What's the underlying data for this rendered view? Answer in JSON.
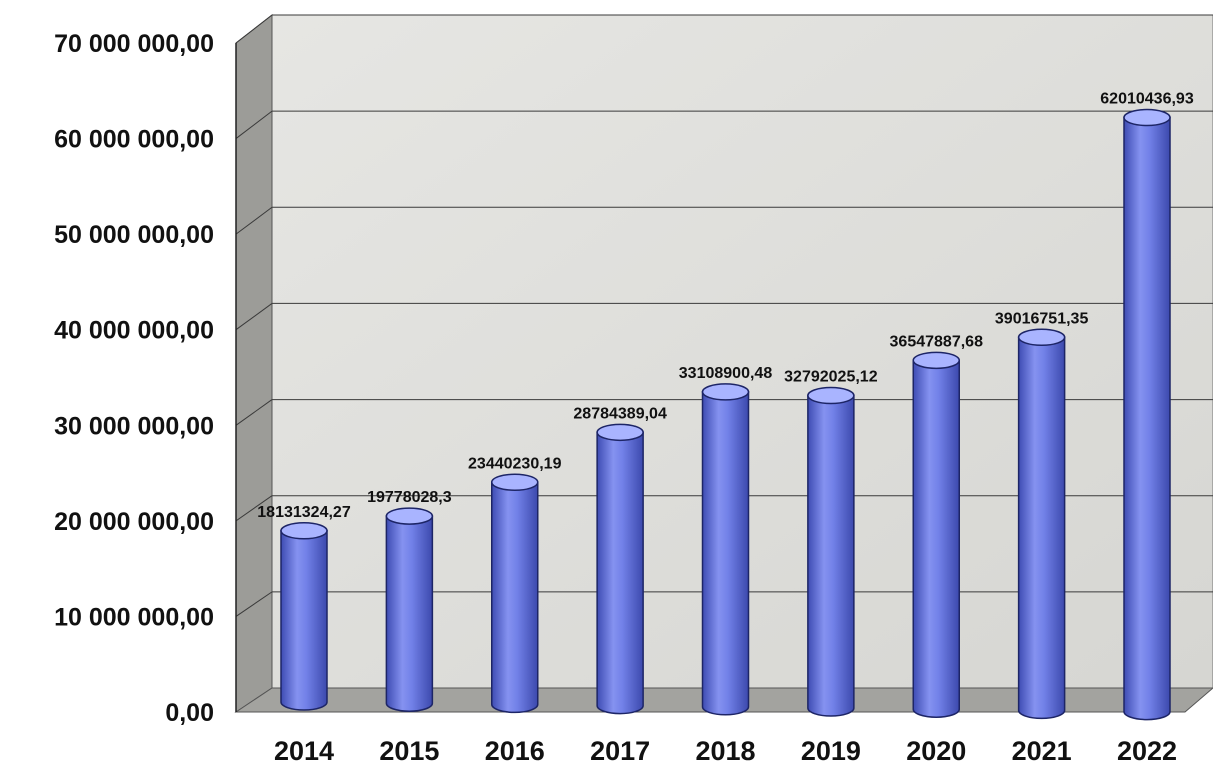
{
  "chart_data": {
    "type": "bar",
    "style": "3d-cylinder",
    "title": "",
    "xlabel": "",
    "ylabel": "",
    "categories": [
      "2014",
      "2015",
      "2016",
      "2017",
      "2018",
      "2019",
      "2020",
      "2021",
      "2022"
    ],
    "values": [
      18131324.27,
      19778028.3,
      23440230.19,
      28784389.04,
      33108900.48,
      32792025.12,
      36547887.68,
      39016751.35,
      62010436.93
    ],
    "data_labels": [
      "18131324,27",
      "19778028,3",
      "23440230,19",
      "28784389,04",
      "33108900,48",
      "32792025,12",
      "36547887,68",
      "39016751,35",
      "62010436,93"
    ],
    "y_tick_values": [
      0,
      10000000,
      20000000,
      30000000,
      40000000,
      50000000,
      60000000,
      70000000
    ],
    "y_tick_labels": [
      "0,00",
      "10 000 000,00",
      "20 000 000,00",
      "30 000 000,00",
      "40 000 000,00",
      "50 000 000,00",
      "60 000 000,00",
      "70 000 000,00"
    ],
    "ylim": [
      0,
      70000000
    ],
    "grid": true,
    "legend": "none",
    "colors": {
      "bar": "#6f7fe8",
      "bar_dark": "#3e4cb3",
      "bar_light": "#a9b4ff",
      "wall": "#dcdcd8",
      "side_wall": "#9c9c98",
      "floor": "#a3a39f",
      "grid": "#3a3a3a"
    }
  }
}
